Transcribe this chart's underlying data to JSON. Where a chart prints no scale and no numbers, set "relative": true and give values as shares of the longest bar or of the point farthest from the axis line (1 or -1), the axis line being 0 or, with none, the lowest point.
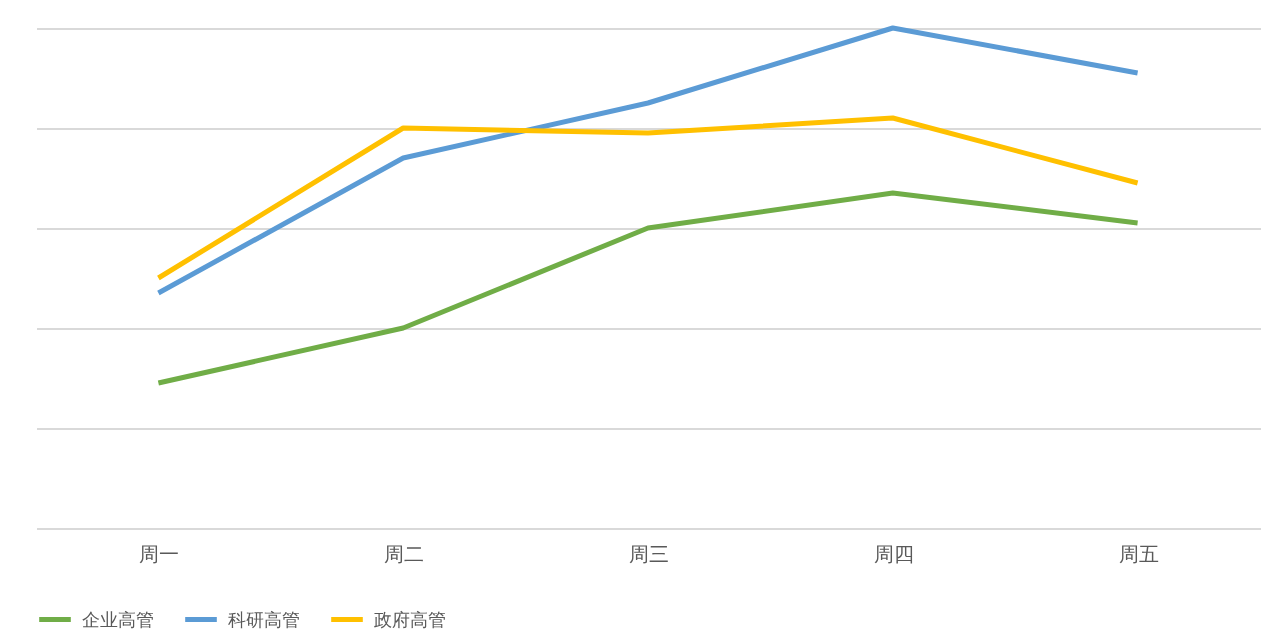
{
  "chart_data": {
    "type": "line",
    "relative": true,
    "grid": "y",
    "legend": "bottom",
    "categories": [
      "周一",
      "周二",
      "周三",
      "周四",
      "周五"
    ],
    "series": [
      {
        "name": "企业高管",
        "color": "#70ad47",
        "values": [
          0.29,
          0.4,
          0.6,
          0.67,
          0.61
        ]
      },
      {
        "name": "科研高管",
        "color": "#5b9bd5",
        "values": [
          0.47,
          0.74,
          0.85,
          1,
          0.91
        ]
      },
      {
        "name": "政府高管",
        "color": "#ffc000",
        "values": [
          0.5,
          0.8,
          0.79,
          0.82,
          0.69
        ]
      }
    ]
  }
}
